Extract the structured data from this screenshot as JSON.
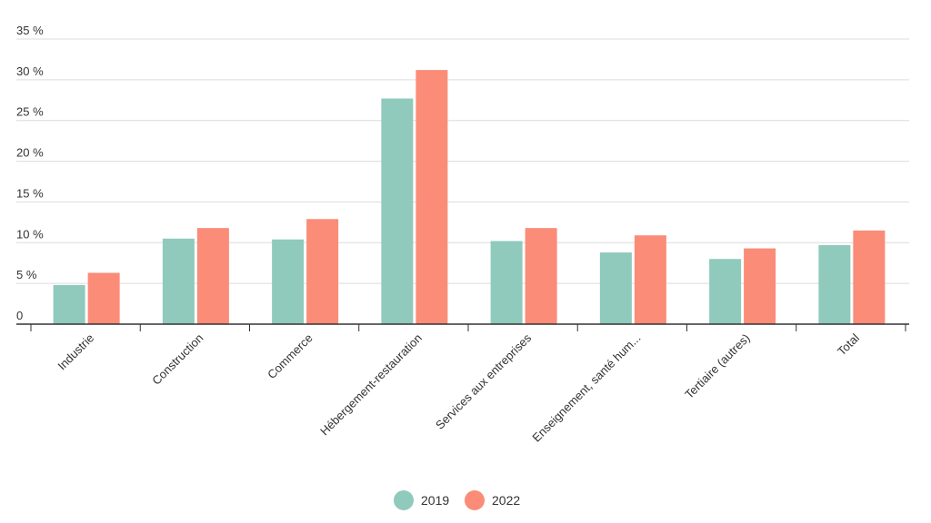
{
  "chart_data": {
    "type": "bar",
    "categories": [
      "Industrie",
      "Construction",
      "Commerce",
      "Hébergement-restauration",
      "Services aux entreprises",
      "Enseignement, santé hum...",
      "Tertiaire (autres)",
      "Total"
    ],
    "series": [
      {
        "name": "2019",
        "color": "#8fcabd",
        "values": [
          4.8,
          10.5,
          10.4,
          27.7,
          10.2,
          8.8,
          8.0,
          9.7
        ]
      },
      {
        "name": "2022",
        "color": "#fa8c78",
        "values": [
          6.3,
          11.8,
          12.9,
          31.2,
          11.8,
          10.9,
          9.3,
          11.5
        ]
      }
    ],
    "yticks": [
      0,
      5,
      10,
      15,
      20,
      25,
      30,
      35
    ],
    "ytick_labels": [
      "0",
      "5 %",
      "10 %",
      "15 %",
      "20 %",
      "25 %",
      "30 %",
      "35 %"
    ],
    "ylim": [
      0,
      35
    ],
    "grid": true,
    "legend_position": "bottom-center"
  }
}
